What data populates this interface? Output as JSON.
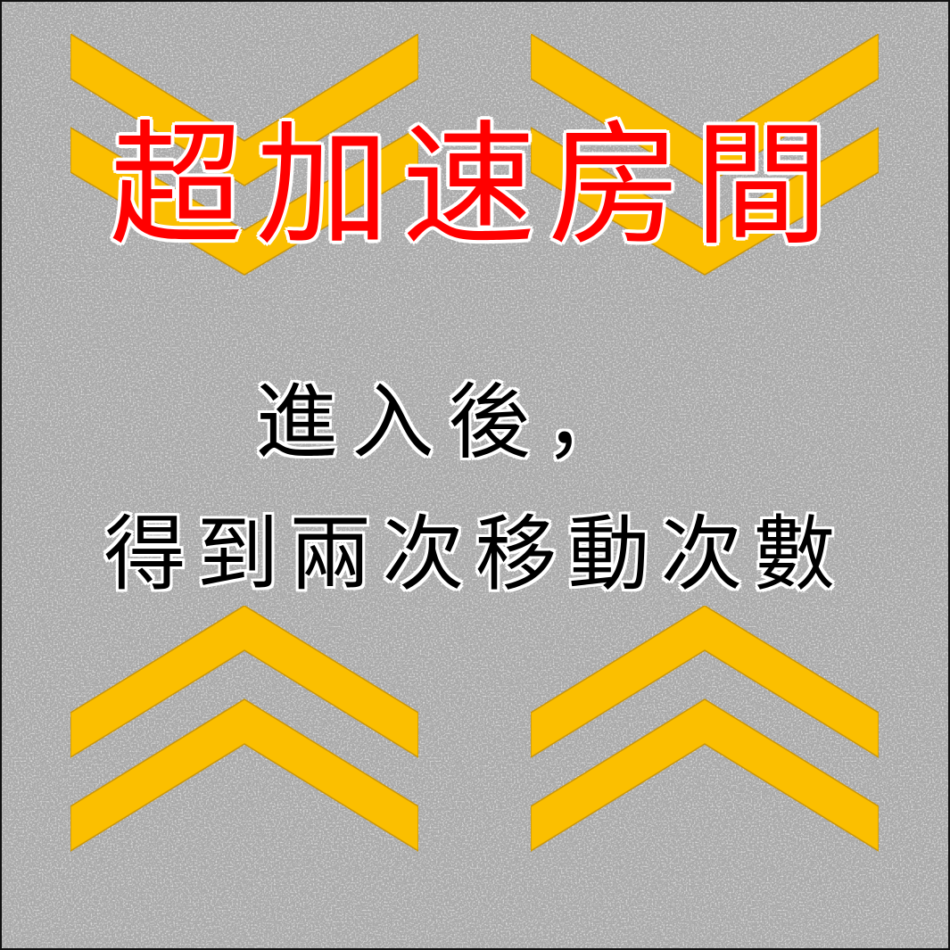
{
  "card": {
    "title": "超加速房間",
    "description_line1": "進入後，",
    "description_line2": "得到兩次移動次數"
  },
  "decorations": {
    "top_chevrons_direction": "down",
    "bottom_chevrons_direction": "up",
    "chevron_icon": "double-chevron-icon"
  },
  "colors": {
    "background": "#a9a9a9",
    "chevron_fill": "#fbbf00",
    "title_text": "#ff0000",
    "title_outline": "#ffffff",
    "body_text": "#000000",
    "body_outline": "#ffffff"
  }
}
